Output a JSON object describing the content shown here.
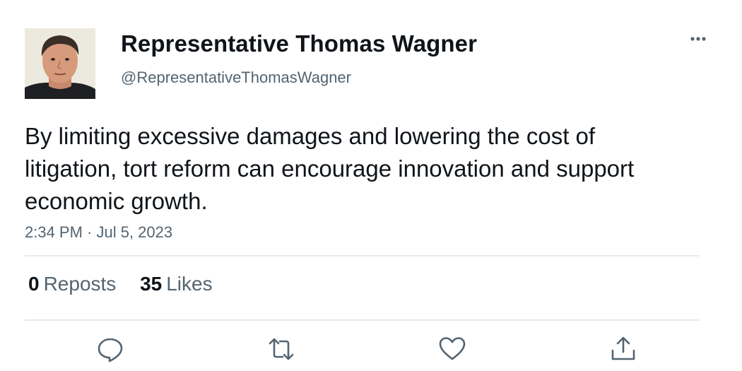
{
  "author": {
    "name": "Representative Thomas Wagner",
    "handle": "@RepresentativeThomasWagner",
    "avatar_icon": "user-photo-avatar"
  },
  "tweet": {
    "text": "By limiting excessive damages and lowering the cost of litigation, tort reform can encourage innovation and support economic growth.",
    "timestamp": "2:34 PM · Jul 5, 2023"
  },
  "stats": {
    "reposts_count": "0",
    "reposts_label": "Reposts",
    "likes_count": "35",
    "likes_label": "Likes"
  },
  "actions": [
    {
      "icon": "reply-icon"
    },
    {
      "icon": "repost-icon"
    },
    {
      "icon": "like-icon"
    },
    {
      "icon": "share-icon"
    }
  ],
  "colors": {
    "text_primary": "#0f1419",
    "text_secondary": "#536471",
    "divider": "#e6e8ea",
    "icon": "#536471"
  }
}
